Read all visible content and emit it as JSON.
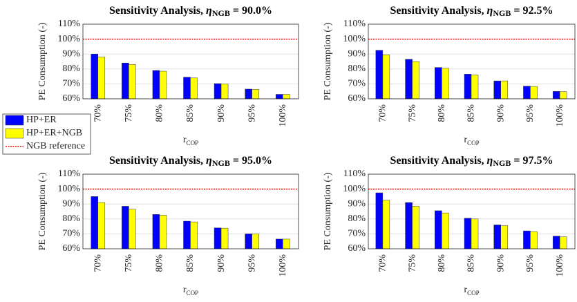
{
  "chart_data": [
    {
      "type": "bar",
      "title": "Sensitivity Analysis,",
      "title_symbol": "η",
      "title_subscript": "NGB",
      "title_value": "= 90.0%",
      "ylabel": "PE Consumption (-)",
      "xlabel": "r",
      "xlabel_subscript": "COP",
      "categories": [
        "70%",
        "75%",
        "80%",
        "85%",
        "90%",
        "95%",
        "100%"
      ],
      "series": [
        {
          "name": "HP+ER",
          "color": "#0000ff",
          "values": [
            90,
            84,
            79,
            74.5,
            70.2,
            66.5,
            63
          ]
        },
        {
          "name": "HP+ER+NGB",
          "color": "#ffff00",
          "values": [
            88,
            83,
            78.5,
            74,
            70,
            66.3,
            63
          ]
        }
      ],
      "reference": 100,
      "reference_name": "NGB reference",
      "reference_color": "#ff0000",
      "ylim": [
        60,
        110
      ],
      "yticks": [
        {
          "value": 60,
          "label": "60%"
        },
        {
          "value": 70,
          "label": "70%"
        },
        {
          "value": 80,
          "label": "80%"
        },
        {
          "value": 90,
          "label": "90%"
        },
        {
          "value": 100,
          "label": "100%"
        },
        {
          "value": 110,
          "label": "110%"
        }
      ],
      "grid": true
    },
    {
      "type": "bar",
      "title": "Sensitivity Analysis,",
      "title_symbol": "η",
      "title_subscript": "NGB",
      "title_value": "= 92.5%",
      "ylabel": "PE Consumption (-)",
      "xlabel": "r",
      "xlabel_subscript": "COP",
      "categories": [
        "70%",
        "75%",
        "80%",
        "85%",
        "90%",
        "95%",
        "100%"
      ],
      "series": [
        {
          "name": "HP+ER",
          "color": "#0000ff",
          "values": [
            92.5,
            86.5,
            81,
            76.5,
            72,
            68.5,
            65
          ]
        },
        {
          "name": "HP+ER+NGB",
          "color": "#ffff00",
          "values": [
            89.5,
            85,
            80.5,
            76,
            72,
            68.3,
            64.8
          ]
        }
      ],
      "reference": 100,
      "reference_color": "#ff0000",
      "ylim": [
        60,
        110
      ],
      "yticks": [
        {
          "value": 60,
          "label": "60%"
        },
        {
          "value": 70,
          "label": "70%"
        },
        {
          "value": 80,
          "label": "80%"
        },
        {
          "value": 90,
          "label": "90%"
        },
        {
          "value": 100,
          "label": "100%"
        },
        {
          "value": 110,
          "label": "110%"
        }
      ],
      "grid": true
    },
    {
      "type": "bar",
      "title": "Sensitivity Analysis,",
      "title_symbol": "η",
      "title_subscript": "NGB",
      "title_value": "= 95.0%",
      "ylabel": "PE Consumption (-)",
      "xlabel": "r",
      "xlabel_subscript": "COP",
      "categories": [
        "70%",
        "75%",
        "80%",
        "85%",
        "90%",
        "95%",
        "100%"
      ],
      "series": [
        {
          "name": "HP+ER",
          "color": "#0000ff",
          "values": [
            95,
            88.5,
            83,
            78.5,
            74,
            70,
            66.5
          ]
        },
        {
          "name": "HP+ER+NGB",
          "color": "#ffff00",
          "values": [
            91,
            86.5,
            82.5,
            78,
            73.8,
            70,
            66.5
          ]
        }
      ],
      "reference": 100,
      "reference_color": "#ff0000",
      "ylim": [
        60,
        110
      ],
      "yticks": [
        {
          "value": 60,
          "label": "60%"
        },
        {
          "value": 70,
          "label": "70%"
        },
        {
          "value": 80,
          "label": "80%"
        },
        {
          "value": 90,
          "label": "90%"
        },
        {
          "value": 100,
          "label": "100%"
        },
        {
          "value": 110,
          "label": "110%"
        }
      ],
      "grid": true
    },
    {
      "type": "bar",
      "title": "Sensitivity Analysis,",
      "title_symbol": "η",
      "title_subscript": "NGB",
      "title_value": "= 97.5%",
      "ylabel": "PE Consumption (-)",
      "xlabel": "r",
      "xlabel_subscript": "COP",
      "categories": [
        "70%",
        "75%",
        "80%",
        "85%",
        "90%",
        "95%",
        "100%"
      ],
      "series": [
        {
          "name": "HP+ER",
          "color": "#0000ff",
          "values": [
            97.5,
            91,
            85.5,
            80.5,
            76,
            72,
            68.5
          ]
        },
        {
          "name": "HP+ER+NGB",
          "color": "#ffff00",
          "values": [
            92.5,
            88.5,
            84,
            80,
            75.5,
            71.5,
            68
          ]
        }
      ],
      "reference": 100,
      "reference_color": "#ff0000",
      "ylim": [
        60,
        110
      ],
      "yticks": [
        {
          "value": 60,
          "label": "60%"
        },
        {
          "value": 70,
          "label": "70%"
        },
        {
          "value": 80,
          "label": "80%"
        },
        {
          "value": 90,
          "label": "90%"
        },
        {
          "value": 100,
          "label": "100%"
        },
        {
          "value": 110,
          "label": "110%"
        }
      ],
      "grid": true
    }
  ]
}
